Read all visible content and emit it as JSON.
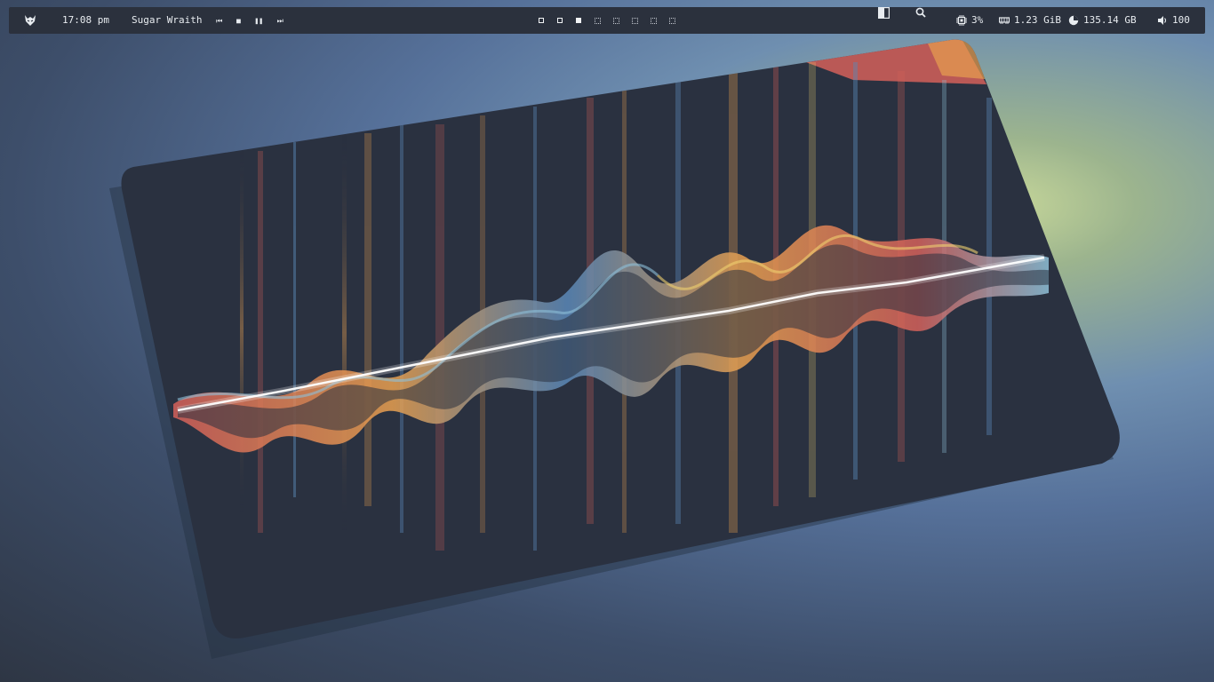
{
  "topbar": {
    "logo_icon": "wolf-logo-icon",
    "clock": "17:08 pm",
    "media": {
      "title": "Sugar Wraith",
      "controls": [
        "previous-icon",
        "stop-icon",
        "pause-icon",
        "next-icon"
      ]
    },
    "workspaces": [
      {
        "state": "active"
      },
      {
        "state": "active"
      },
      {
        "state": "filled"
      },
      {
        "state": "empty"
      },
      {
        "state": "empty"
      },
      {
        "state": "empty"
      },
      {
        "state": "empty"
      },
      {
        "state": "empty"
      }
    ],
    "layout_icon": "layout-icon",
    "search_icon": "search-icon",
    "cpu": {
      "icon": "cpu-icon",
      "value": "3%"
    },
    "memory": {
      "icon": "memory-icon",
      "value": "1.23 GiB"
    },
    "disk": {
      "icon": "disk-icon",
      "value": "135.14 GB"
    },
    "volume": {
      "icon": "volume-icon",
      "value": "100"
    }
  },
  "colors": {
    "bar_bg": "#2b313d",
    "text": "#e8ecf0",
    "wave_red": "#d4605a",
    "wave_orange": "#e8a050",
    "wave_yellow": "#f0d070",
    "wave_blue": "#5a88b8",
    "wave_cyan": "#8ec0d8",
    "panel": "#2a3140"
  }
}
